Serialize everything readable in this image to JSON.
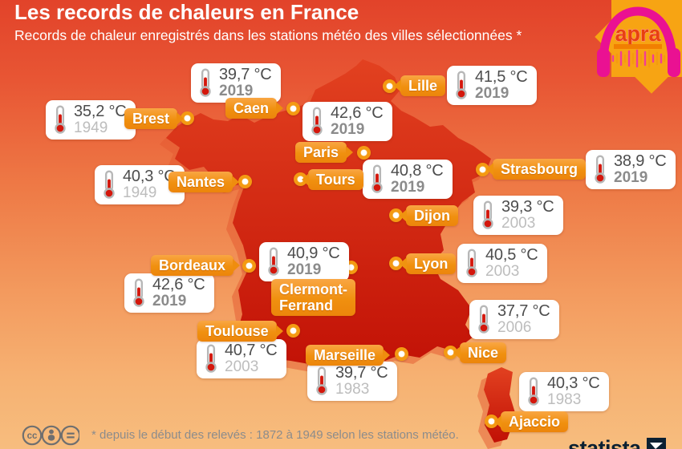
{
  "header": {
    "title": "Les records de chaleurs en France",
    "subtitle": "Records de chaleur enregistrés dans les stations météo des villes sélectionnées *"
  },
  "watermark": {
    "text": "apra"
  },
  "footer": {
    "note": "* depuis le début des relevés : 1872 à 1949 selon les stations météo.",
    "brand": "statista"
  },
  "colors": {
    "background_top": "#e2432a",
    "background_bottom": "#f7bd7e",
    "map_red_top": "#e24120",
    "map_red_bottom": "#c11005",
    "label_orange": "#f0900f",
    "sun_orange": "#f7a413",
    "logo_pink": "#ea1192",
    "card_temp_text": "#4d4d4d",
    "year_recent_gray": "#8b8b8b",
    "year_old_gray": "#bdbdbd"
  },
  "chart_data": {
    "type": "scatter",
    "title": "Les records de chaleurs en France",
    "subtitle": "Records de chaleur enregistrés dans les stations météo des villes sélectionnées *",
    "note": "* depuis le début des relevés : 1872 à 1949 selon les stations météo.",
    "unit": "°C",
    "points": [
      {
        "city": "Lille",
        "temp_c": 41.5,
        "temp_label": "41,5 °C",
        "year": "2019"
      },
      {
        "city": "Caen",
        "temp_c": 39.7,
        "temp_label": "39,7 °C",
        "year": "2019"
      },
      {
        "city": "Brest",
        "temp_c": 35.2,
        "temp_label": "35,2 °C",
        "year": "1949"
      },
      {
        "city": "Paris",
        "temp_c": 42.6,
        "temp_label": "42,6 °C",
        "year": "2019"
      },
      {
        "city": "Tours",
        "temp_c": 40.8,
        "temp_label": "40,8 °C",
        "year": "2019"
      },
      {
        "city": "Strasbourg",
        "temp_c": 38.9,
        "temp_label": "38,9 °C",
        "year": "2019"
      },
      {
        "city": "Nantes",
        "temp_c": 40.3,
        "temp_label": "40,3 °C",
        "year": "1949"
      },
      {
        "city": "Dijon",
        "temp_c": 39.3,
        "temp_label": "39,3 °C",
        "year": "2003"
      },
      {
        "city": "Lyon",
        "temp_c": 40.5,
        "temp_label": "40,5 °C",
        "year": "2003"
      },
      {
        "city": "Bordeaux",
        "temp_c": 42.6,
        "temp_label": "42,6 °C",
        "year": "2019"
      },
      {
        "city": "Clermont-Ferrand",
        "temp_c": 40.9,
        "temp_label": "40,9 °C",
        "year": "2019"
      },
      {
        "city": "Toulouse",
        "temp_c": 40.7,
        "temp_label": "40,7 °C",
        "year": "2003"
      },
      {
        "city": "Marseille",
        "temp_c": 39.7,
        "temp_label": "39,7 °C",
        "year": "1983"
      },
      {
        "city": "Nice",
        "temp_c": 37.7,
        "temp_label": "37,7 °C",
        "year": "2006"
      },
      {
        "city": "Ajaccio",
        "temp_c": 40.3,
        "temp_label": "40,3 °C",
        "year": "1983"
      }
    ]
  }
}
